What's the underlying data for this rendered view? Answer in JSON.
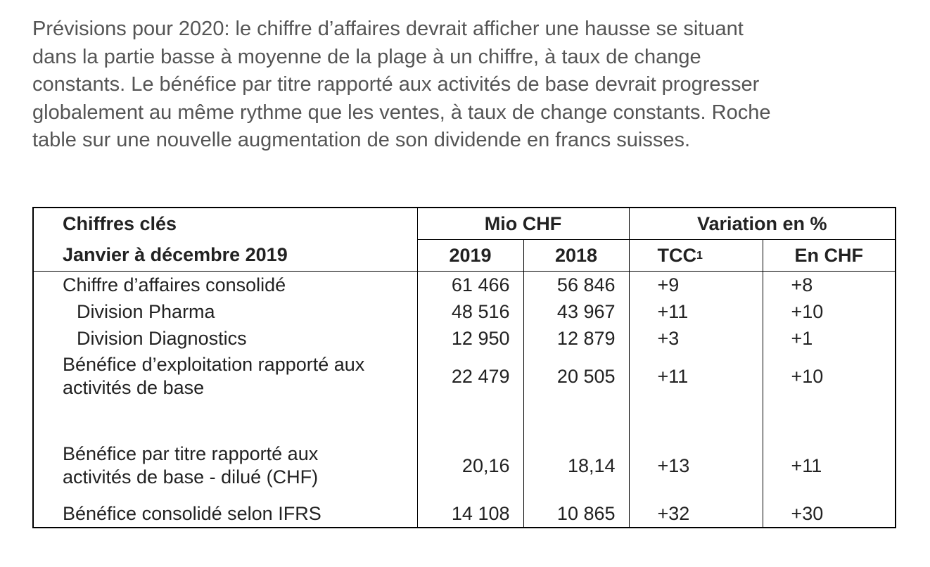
{
  "intro": "Prévisions pour 2020: le chiffre d’affaires devrait afficher une hausse se situant dans la partie basse à moyenne de la plage à un chiffre, à taux de change constants. Le bénéfice par titre rapporté aux activités de base devrait progresser globalement au même rythme que les ventes, à taux de change constants. Roche table sur une nouvelle augmentation de son dividende en francs suisses.",
  "table": {
    "header": {
      "title": "Chiffres clés",
      "period": "Janvier à décembre 2019",
      "group_mio": "Mio CHF",
      "group_var": "Variation en %",
      "col_2019": "2019",
      "col_2018": "2018",
      "col_tcc": "TCC",
      "col_tcc_note": "1",
      "col_chf": "En CHF"
    },
    "rows": [
      {
        "label": "Chiffre d’affaires consolidé",
        "v2019": "61 466",
        "v2018": "56 846",
        "tcc": "+9",
        "chf": "+8"
      },
      {
        "label": "Division Pharma",
        "v2019": "48 516",
        "v2018": "43 967",
        "tcc": "+11",
        "chf": "+10"
      },
      {
        "label": "Division Diagnostics",
        "v2019": "12 950",
        "v2018": "12 879",
        "tcc": "+3",
        "chf": "+1"
      },
      {
        "label_line1": "Bénéfice d’exploitation rapporté aux",
        "label_line2": "activités de base",
        "v2019": "22 479",
        "v2018": "20 505",
        "tcc": "+11",
        "chf": "+10"
      },
      {
        "label_line1": "Bénéfice par titre rapporté aux",
        "label_line2": "activités de base - dilué (CHF)",
        "v2019": "20,16",
        "v2018": "18,14",
        "tcc": "+13",
        "chf": "+11"
      },
      {
        "label": "Bénéfice consolidé selon IFRS",
        "v2019": "14 108",
        "v2018": "10 865",
        "tcc": "+32",
        "chf": "+30"
      }
    ]
  }
}
